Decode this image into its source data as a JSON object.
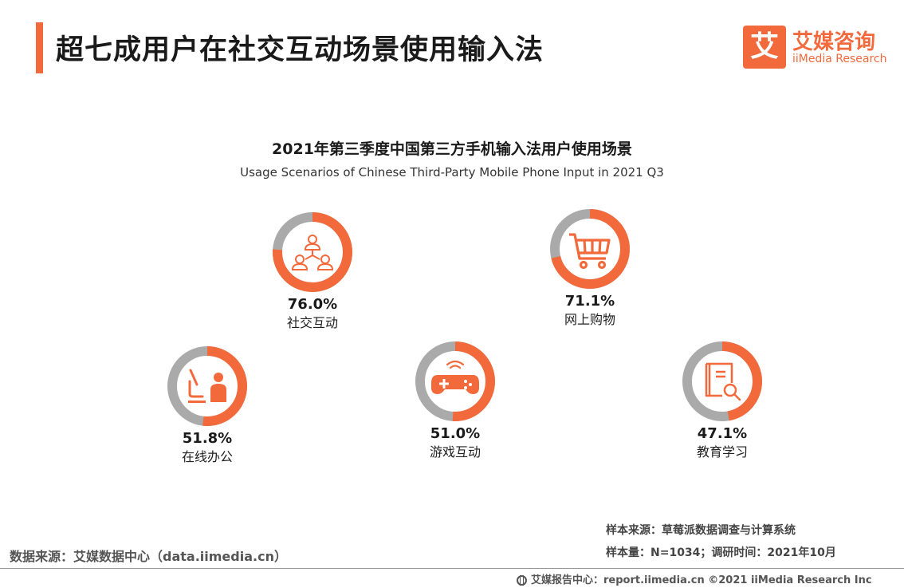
{
  "header": {
    "title": "超七成用户在社交互动场景使用输入法"
  },
  "logo": {
    "mark": "艾",
    "name_cn": "艾媒咨询",
    "name_en": "iiMedia Research"
  },
  "colors": {
    "accent": "#f26a3c",
    "ring_rest": "#aaaaaa"
  },
  "chart_data": {
    "type": "pie",
    "subtype": "donut-set",
    "title": "2021年第三季度中国第三方手机输入法用户使用场景",
    "subtitle": "Usage Scenarios of Chinese Third-Party Mobile Phone Input in 2021 Q3",
    "unit": "%",
    "items": [
      {
        "label": "社交互动",
        "value": 76.0,
        "value_text": "76.0%",
        "icon": "social-network-icon"
      },
      {
        "label": "网上购物",
        "value": 71.1,
        "value_text": "71.1%",
        "icon": "shopping-cart-icon"
      },
      {
        "label": "在线办公",
        "value": 51.8,
        "value_text": "51.8%",
        "icon": "office-worker-icon"
      },
      {
        "label": "游戏互动",
        "value": 51.0,
        "value_text": "51.0%",
        "icon": "gamepad-icon"
      },
      {
        "label": "教育学习",
        "value": 47.1,
        "value_text": "47.1%",
        "icon": "book-search-icon"
      }
    ]
  },
  "footer": {
    "source": "数据来源：艾媒数据中心（data.iimedia.cn）",
    "sample_source": "样本来源：草莓派数据调查与计算系统",
    "sample_size": "样本量：N=1034；调研时间：2021年10月",
    "copyright": "艾媒报告中心：report.iimedia.cn   ©2021  iiMedia Research  Inc"
  }
}
